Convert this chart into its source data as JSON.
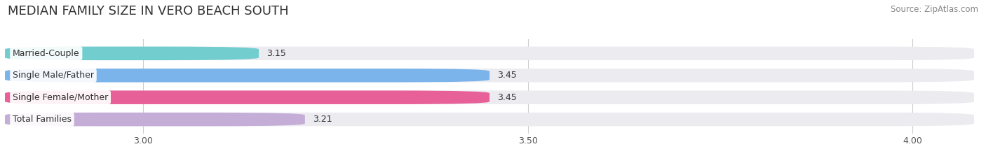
{
  "title": "MEDIAN FAMILY SIZE IN VERO BEACH SOUTH",
  "source": "Source: ZipAtlas.com",
  "categories": [
    "Married-Couple",
    "Single Male/Father",
    "Single Female/Mother",
    "Total Families"
  ],
  "values": [
    3.15,
    3.45,
    3.45,
    3.21
  ],
  "bar_colors": [
    "#72cece",
    "#7ab4ea",
    "#e86098",
    "#c4aed8"
  ],
  "x_min": 2.82,
  "x_max": 4.08,
  "x_ticks": [
    3.0,
    3.5,
    4.0
  ],
  "x_tick_labels": [
    "3.00",
    "3.50",
    "4.00"
  ],
  "bar_height": 0.62,
  "background_color": "#ffffff",
  "bar_bg_color": "#ebebf0",
  "title_fontsize": 13,
  "label_fontsize": 9,
  "value_fontsize": 9,
  "tick_fontsize": 9,
  "source_fontsize": 8.5
}
